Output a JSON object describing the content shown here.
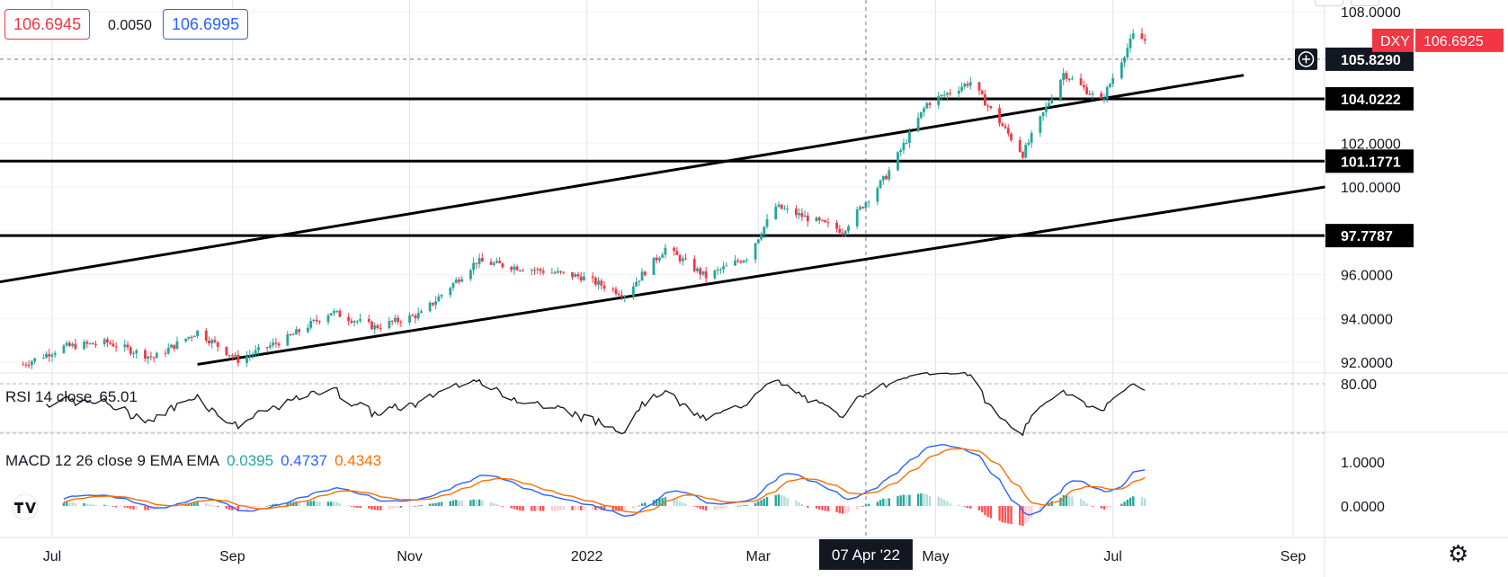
{
  "header": {
    "bid": "106.6945",
    "spread": "0.0050",
    "ask": "106.6995",
    "bid_color": "#f23645",
    "ask_color": "#2962ff"
  },
  "price_tags": {
    "symbol": "DXY",
    "last_price": "106.6925",
    "crosshair_price": "105.8290",
    "crosshair_date": "07 Apr '22"
  },
  "indicators": {
    "rsi": {
      "name": "RSI 14 close",
      "value": "65.01",
      "level": "80.00"
    },
    "macd": {
      "name": "MACD 12 26 close 9 EMA EMA",
      "histogram": "0.0395",
      "macd": "0.4737",
      "signal": "0.4343",
      "macd_color": "#2962ff",
      "signal_color": "#ff6d00",
      "histogram_color": "#26a69a"
    }
  },
  "chart_data": {
    "type": "candlestick",
    "symbol": "DXY",
    "x_ticks": [
      "Jul",
      "Sep",
      "Nov",
      "2022",
      "Mar",
      "May",
      "Jul",
      "Sep"
    ],
    "y_ticks": [
      "108.0000",
      "102.0000",
      "100.0000",
      "96.0000",
      "94.0000",
      "92.0000"
    ],
    "ylim": [
      91.2,
      108.2
    ],
    "up_color": "#26a69a",
    "down_color": "#f23645",
    "price_path": [
      [
        "2021-06-21",
        91.9
      ],
      [
        "2021-07-05",
        92.7
      ],
      [
        "2021-07-20",
        92.9
      ],
      [
        "2021-08-05",
        92.2
      ],
      [
        "2021-08-20",
        93.4
      ],
      [
        "2021-09-03",
        92.1
      ],
      [
        "2021-09-20",
        93.1
      ],
      [
        "2021-10-05",
        94.3
      ],
      [
        "2021-10-20",
        93.6
      ],
      [
        "2021-11-05",
        94.2
      ],
      [
        "2021-11-24",
        96.6
      ],
      [
        "2021-12-10",
        96.3
      ],
      [
        "2021-12-30",
        95.9
      ],
      [
        "2022-01-14",
        95.1
      ],
      [
        "2022-01-28",
        97.2
      ],
      [
        "2022-02-11",
        95.9
      ],
      [
        "2022-02-25",
        96.8
      ],
      [
        "2022-03-07",
        99.1
      ],
      [
        "2022-03-30",
        98.0
      ],
      [
        "2022-04-14",
        100.5
      ],
      [
        "2022-04-28",
        103.8
      ],
      [
        "2022-05-13",
        104.8
      ],
      [
        "2022-05-31",
        101.5
      ],
      [
        "2022-06-14",
        105.2
      ],
      [
        "2022-06-27",
        103.9
      ],
      [
        "2022-07-08",
        106.9
      ],
      [
        "2022-07-12",
        106.6925
      ]
    ],
    "horizontal_levels": [
      104.0222,
      101.1771,
      97.7787
    ],
    "trend_lines": [
      {
        "from": [
          "2021-06-01",
          95.4
        ],
        "to": [
          "2022-08-15",
          105.1
        ]
      },
      {
        "from": [
          "2021-08-20",
          91.9
        ],
        "to": [
          "2022-09-12",
          100.0
        ]
      }
    ],
    "crosshair": {
      "date": "2022-04-07",
      "price": 105.829
    },
    "rsi": {
      "level_lines": [
        80,
        30
      ],
      "label": "80.00"
    },
    "macd": {
      "y_ticks": [
        "1.0000",
        "0.0000"
      ]
    }
  }
}
